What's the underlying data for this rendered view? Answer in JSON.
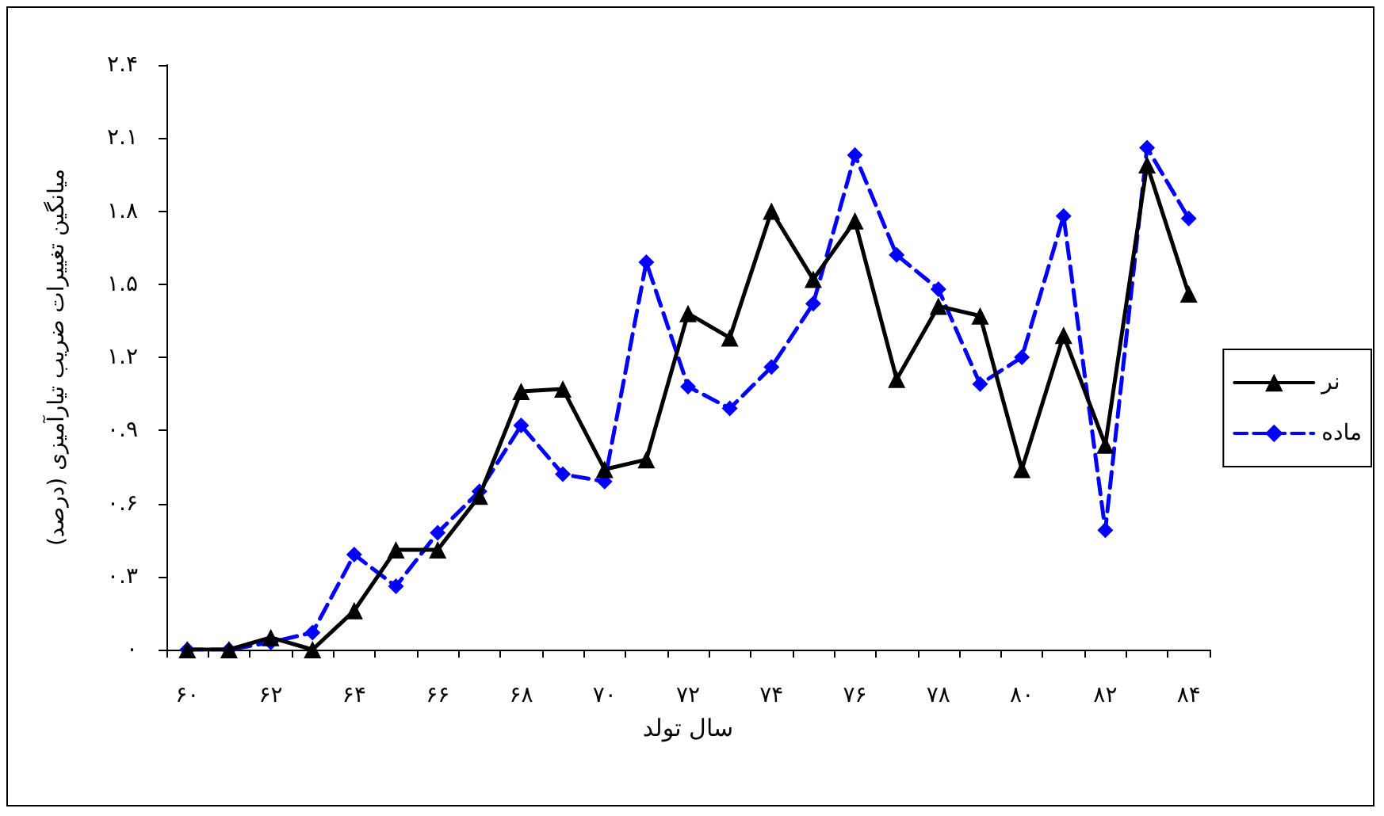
{
  "chart_data": {
    "type": "line",
    "xlabel": "سال تولد",
    "ylabel": "میانگین تغییرات ضریب تیارآمیزی (درصد)",
    "categories": [
      "۶۰",
      null,
      "۶۲",
      null,
      "۶۴",
      null,
      "۶۶",
      null,
      "۶۸",
      null,
      "۷۰",
      null,
      "۷۲",
      null,
      "۷۴",
      null,
      "۷۶",
      null,
      "۷۸",
      null,
      "۸۰",
      null,
      "۸۲",
      null,
      "۸۴"
    ],
    "ylim": [
      0,
      2.4
    ],
    "yticks": [
      {
        "value": 0,
        "label": "۰"
      },
      {
        "value": 0.3,
        "label": "۰.۳"
      },
      {
        "value": 0.6,
        "label": "۰.۶"
      },
      {
        "value": 0.9,
        "label": "۰.۹"
      },
      {
        "value": 1.2,
        "label": "۱.۲"
      },
      {
        "value": 1.5,
        "label": "۱.۵"
      },
      {
        "value": 1.8,
        "label": "۱.۸"
      },
      {
        "value": 2.1,
        "label": "۲.۱"
      },
      {
        "value": 2.4,
        "label": "۲.۴"
      }
    ],
    "grid": false,
    "legend": "right",
    "series": [
      {
        "name": "نر",
        "color": "#000000",
        "marker": "triangle",
        "line_style": "solid",
        "values": [
          0,
          0,
          0.05,
          0,
          0.16,
          0.41,
          0.41,
          0.63,
          1.06,
          1.07,
          0.74,
          0.78,
          1.38,
          1.28,
          1.8,
          1.52,
          1.76,
          1.11,
          1.41,
          1.37,
          0.74,
          1.29,
          0.84,
          1.99,
          1.46
        ]
      },
      {
        "name": "ماده",
        "color": "#0000ff",
        "marker": "diamond",
        "line_style": "dashed",
        "values": [
          0,
          0,
          0.03,
          0.07,
          0.39,
          0.26,
          0.48,
          0.65,
          0.92,
          0.72,
          0.69,
          1.59,
          1.08,
          0.99,
          1.16,
          1.42,
          2.03,
          1.62,
          1.48,
          1.09,
          1.2,
          1.78,
          0.49,
          2.06,
          1.77
        ]
      }
    ]
  }
}
